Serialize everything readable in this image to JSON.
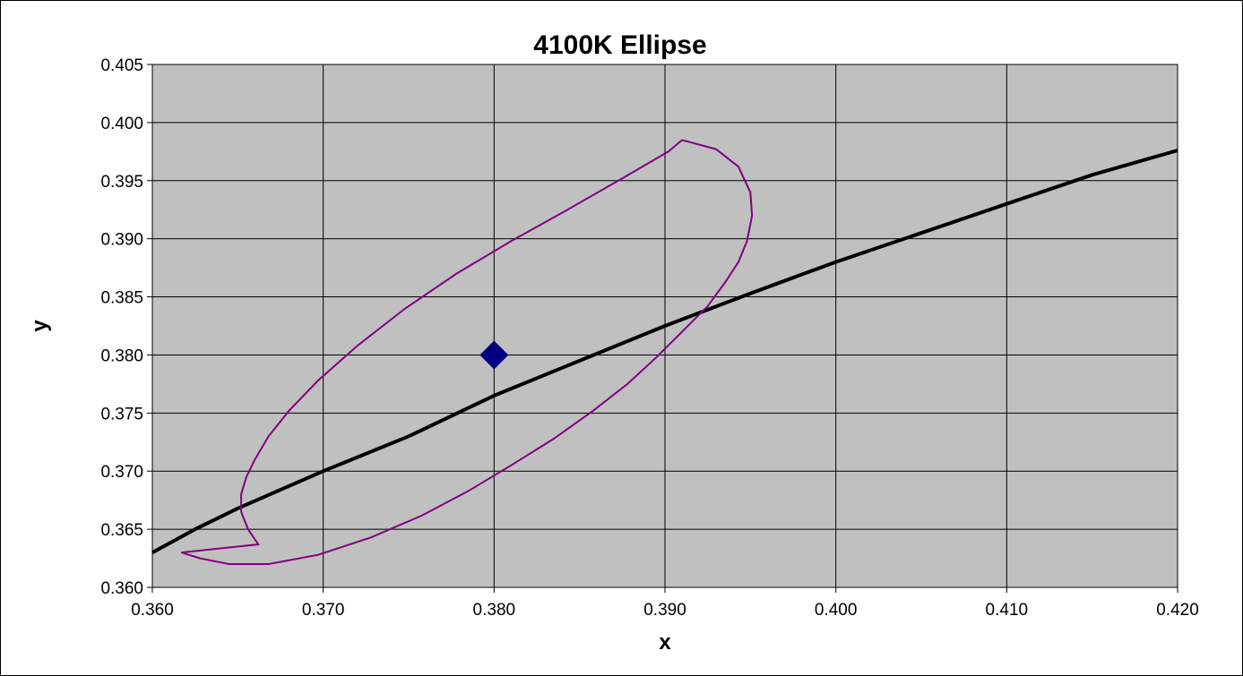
{
  "chart_data": {
    "type": "scatter",
    "title": "4100K Ellipse",
    "xlabel": "x",
    "ylabel": "y",
    "xlim": [
      0.36,
      0.42
    ],
    "ylim": [
      0.36,
      0.405
    ],
    "x_ticks": [
      "0.360",
      "0.370",
      "0.380",
      "0.390",
      "0.400",
      "0.410",
      "0.420"
    ],
    "y_ticks": [
      "0.360",
      "0.365",
      "0.370",
      "0.375",
      "0.380",
      "0.385",
      "0.390",
      "0.395",
      "0.400",
      "0.405"
    ],
    "grid": true,
    "legend": "none",
    "colors": {
      "plot_background": "#c0c0c0",
      "ellipse": "#800080",
      "locus": "#000000",
      "center_marker": "#000080"
    },
    "series": [
      {
        "kind": "center-point",
        "points": [
          [
            0.38,
            0.38
          ]
        ]
      },
      {
        "kind": "planckian-locus",
        "points": [
          [
            0.36,
            0.363
          ],
          [
            0.3625,
            0.365
          ],
          [
            0.365,
            0.3668
          ],
          [
            0.37,
            0.37
          ],
          [
            0.375,
            0.373
          ],
          [
            0.38,
            0.3765
          ],
          [
            0.385,
            0.3795
          ],
          [
            0.39,
            0.3825
          ],
          [
            0.395,
            0.3853
          ],
          [
            0.4,
            0.388
          ],
          [
            0.405,
            0.3905
          ],
          [
            0.41,
            0.393
          ],
          [
            0.415,
            0.3955
          ],
          [
            0.42,
            0.3976
          ]
        ]
      },
      {
        "kind": "ellipse",
        "points": [
          [
            0.391,
            0.3985
          ],
          [
            0.393,
            0.3977
          ],
          [
            0.3943,
            0.3962
          ],
          [
            0.395,
            0.394
          ],
          [
            0.3951,
            0.392
          ],
          [
            0.3948,
            0.3898
          ],
          [
            0.3943,
            0.388
          ],
          [
            0.3935,
            0.3862
          ],
          [
            0.3925,
            0.3842
          ],
          [
            0.391,
            0.382
          ],
          [
            0.3895,
            0.3798
          ],
          [
            0.3878,
            0.3775
          ],
          [
            0.3858,
            0.3752
          ],
          [
            0.3835,
            0.3728
          ],
          [
            0.381,
            0.3705
          ],
          [
            0.3785,
            0.3683
          ],
          [
            0.3758,
            0.3662
          ],
          [
            0.3728,
            0.3643
          ],
          [
            0.3697,
            0.3628
          ],
          [
            0.3668,
            0.362
          ],
          [
            0.3645,
            0.362
          ],
          [
            0.3628,
            0.3625
          ],
          [
            0.3617,
            0.363
          ],
          [
            0.3662,
            0.3637
          ],
          [
            0.3656,
            0.365
          ],
          [
            0.3652,
            0.3665
          ],
          [
            0.3652,
            0.368
          ],
          [
            0.3655,
            0.3695
          ],
          [
            0.366,
            0.371
          ],
          [
            0.3668,
            0.373
          ],
          [
            0.368,
            0.3752
          ],
          [
            0.3697,
            0.3778
          ],
          [
            0.372,
            0.3808
          ],
          [
            0.3748,
            0.384
          ],
          [
            0.3778,
            0.387
          ],
          [
            0.381,
            0.3898
          ],
          [
            0.3843,
            0.3925
          ],
          [
            0.3875,
            0.3952
          ],
          [
            0.3902,
            0.3975
          ],
          [
            0.391,
            0.3985
          ]
        ]
      }
    ]
  }
}
